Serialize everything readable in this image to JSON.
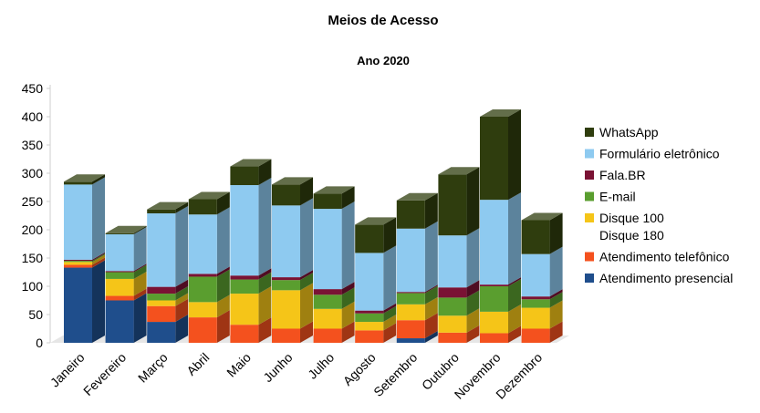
{
  "chart_data": {
    "type": "bar",
    "stacked": true,
    "title": "Meios de Acesso",
    "subtitle": "Ano 2020",
    "xlabel": "",
    "ylabel": "",
    "ylim": [
      0,
      450
    ],
    "yticks": [
      "0",
      "50",
      "100",
      "150",
      "200",
      "250",
      "300",
      "350",
      "400",
      "450"
    ],
    "grid": false,
    "legend_position": "right",
    "categories": [
      "Janeiro",
      "Fevereiro",
      "Março",
      "Abril",
      "Maio",
      "Junho",
      "Julho",
      "Agosto",
      "Setembro",
      "Outubro",
      "Novembro",
      "Dezembro"
    ],
    "series": [
      {
        "name": "Atendimento presencial",
        "color": "#1f4e8c",
        "values": [
          133,
          75,
          37,
          0,
          0,
          0,
          0,
          0,
          8,
          0,
          0,
          0
        ]
      },
      {
        "name": "Atendimento telefônico",
        "color": "#f4511e",
        "values": [
          5,
          8,
          28,
          45,
          32,
          25,
          25,
          22,
          32,
          18,
          17,
          25
        ]
      },
      {
        "name": "Disque 100\nDisque 180",
        "color": "#f5c518",
        "values": [
          5,
          30,
          10,
          27,
          55,
          68,
          35,
          15,
          28,
          30,
          38,
          37
        ]
      },
      {
        "name": "E-mail",
        "color": "#5a9e2f",
        "values": [
          2,
          12,
          12,
          45,
          25,
          18,
          25,
          15,
          20,
          32,
          45,
          15
        ]
      },
      {
        "name": "Fala.BR",
        "color": "#7a1234",
        "values": [
          2,
          2,
          12,
          5,
          7,
          5,
          10,
          5,
          2,
          18,
          3,
          5
        ]
      },
      {
        "name": "Formulário eletrônico",
        "color": "#8ecaf0",
        "values": [
          133,
          65,
          130,
          105,
          160,
          127,
          142,
          102,
          112,
          92,
          150,
          75
        ]
      },
      {
        "name": "WhatsApp",
        "color": "#2f3d0e",
        "values": [
          5,
          2,
          7,
          27,
          33,
          37,
          27,
          50,
          50,
          108,
          147,
          60
        ]
      }
    ],
    "legend_order": [
      "WhatsApp",
      "Formulário eletrônico",
      "Fala.BR",
      "E-mail",
      "Disque 100\nDisque 180",
      "Atendimento telefônico",
      "Atendimento presencial"
    ]
  }
}
